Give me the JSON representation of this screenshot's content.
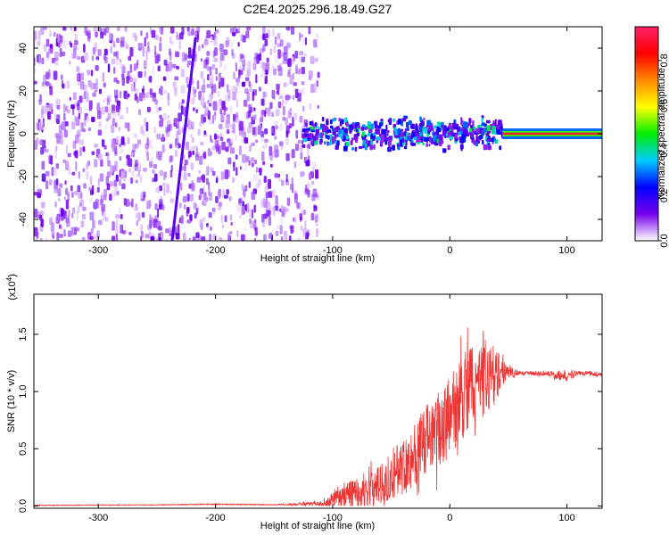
{
  "title": "C2E4.2025.296.18.49.G27",
  "chart_data": [
    {
      "type": "heatmap",
      "xlabel": "Height of straight line (km)",
      "ylabel": "Frequency (Hz)",
      "xlim": [
        -355,
        130
      ],
      "ylim": [
        -50,
        50
      ],
      "xticks": [
        -300,
        -200,
        -100,
        0,
        100
      ],
      "yticks": [
        -40,
        -20,
        0,
        20,
        40
      ],
      "colorbar": {
        "label": "Normalized spectral amplitude",
        "range": [
          0,
          0.95
        ],
        "ticks": [
          "0.0",
          "0.2",
          "0.4",
          "0.6",
          "0.8"
        ],
        "tick_values": [
          0,
          0.2,
          0.4,
          0.6,
          0.8
        ],
        "stops": [
          "#ffffff",
          "#7700ee",
          "#0000ff",
          "#00ccff",
          "#00ee00",
          "#ffff00",
          "#ff8800",
          "#ff0000",
          "#ff2266"
        ]
      },
      "regions": [
        {
          "name": "noise",
          "x_range": [
            -355,
            -112
          ],
          "freq_range": [
            -50,
            50
          ],
          "amplitude": [
            0.02,
            0.15
          ]
        },
        {
          "name": "streak",
          "from": [
            -237,
            -50
          ],
          "to": [
            -217,
            45
          ],
          "amplitude": 0.15
        },
        {
          "name": "tone-noisy",
          "x_range": [
            -125,
            45
          ],
          "center_hz": 0,
          "half_width_hz": 6,
          "amplitude": [
            0.1,
            0.45
          ]
        },
        {
          "name": "tone-clean",
          "x_range": [
            45,
            130
          ],
          "center_hz": 0,
          "half_width_hz": 2.5,
          "amplitude": [
            0.3,
            0.9
          ]
        }
      ]
    },
    {
      "type": "line",
      "xlabel": "Height of straight line (km)",
      "ylabel": "SNR (10 * v/v)",
      "y_multiplier": "(x10",
      "y_exponent": "4",
      "y_multiplier_close": ")",
      "xlim": [
        -355,
        130
      ],
      "ylim": [
        -0.02,
        1.85
      ],
      "xticks": [
        -300,
        -200,
        -100,
        0,
        100
      ],
      "yticks": [
        "0.0",
        "0.5",
        "1.0",
        "1.5"
      ],
      "ytick_values": [
        0,
        0.5,
        1.0,
        1.5
      ],
      "color": "#ee3333",
      "series": [
        {
          "name": "SNR",
          "x": [
            -355,
            -300,
            -250,
            -200,
            -150,
            -110,
            -100,
            -80,
            -60,
            -40,
            -30,
            -20,
            -10,
            0,
            10,
            20,
            30,
            40,
            48,
            60,
            80,
            95,
            100,
            110,
            130
          ],
          "y": [
            0.005,
            0.008,
            0.01,
            0.015,
            0.01,
            0.02,
            0.05,
            0.12,
            0.18,
            0.35,
            0.45,
            0.55,
            0.65,
            0.78,
            0.95,
            1.05,
            1.12,
            1.15,
            1.17,
            1.16,
            1.16,
            1.14,
            1.13,
            1.16,
            1.15
          ],
          "noise": [
            0.003,
            0.003,
            0.003,
            0.005,
            0.003,
            0.02,
            0.06,
            0.14,
            0.18,
            0.25,
            0.3,
            0.32,
            0.34,
            0.36,
            0.38,
            0.4,
            0.32,
            0.25,
            0.06,
            0.02,
            0.02,
            0.04,
            0.04,
            0.02,
            0.02
          ]
        }
      ]
    }
  ]
}
